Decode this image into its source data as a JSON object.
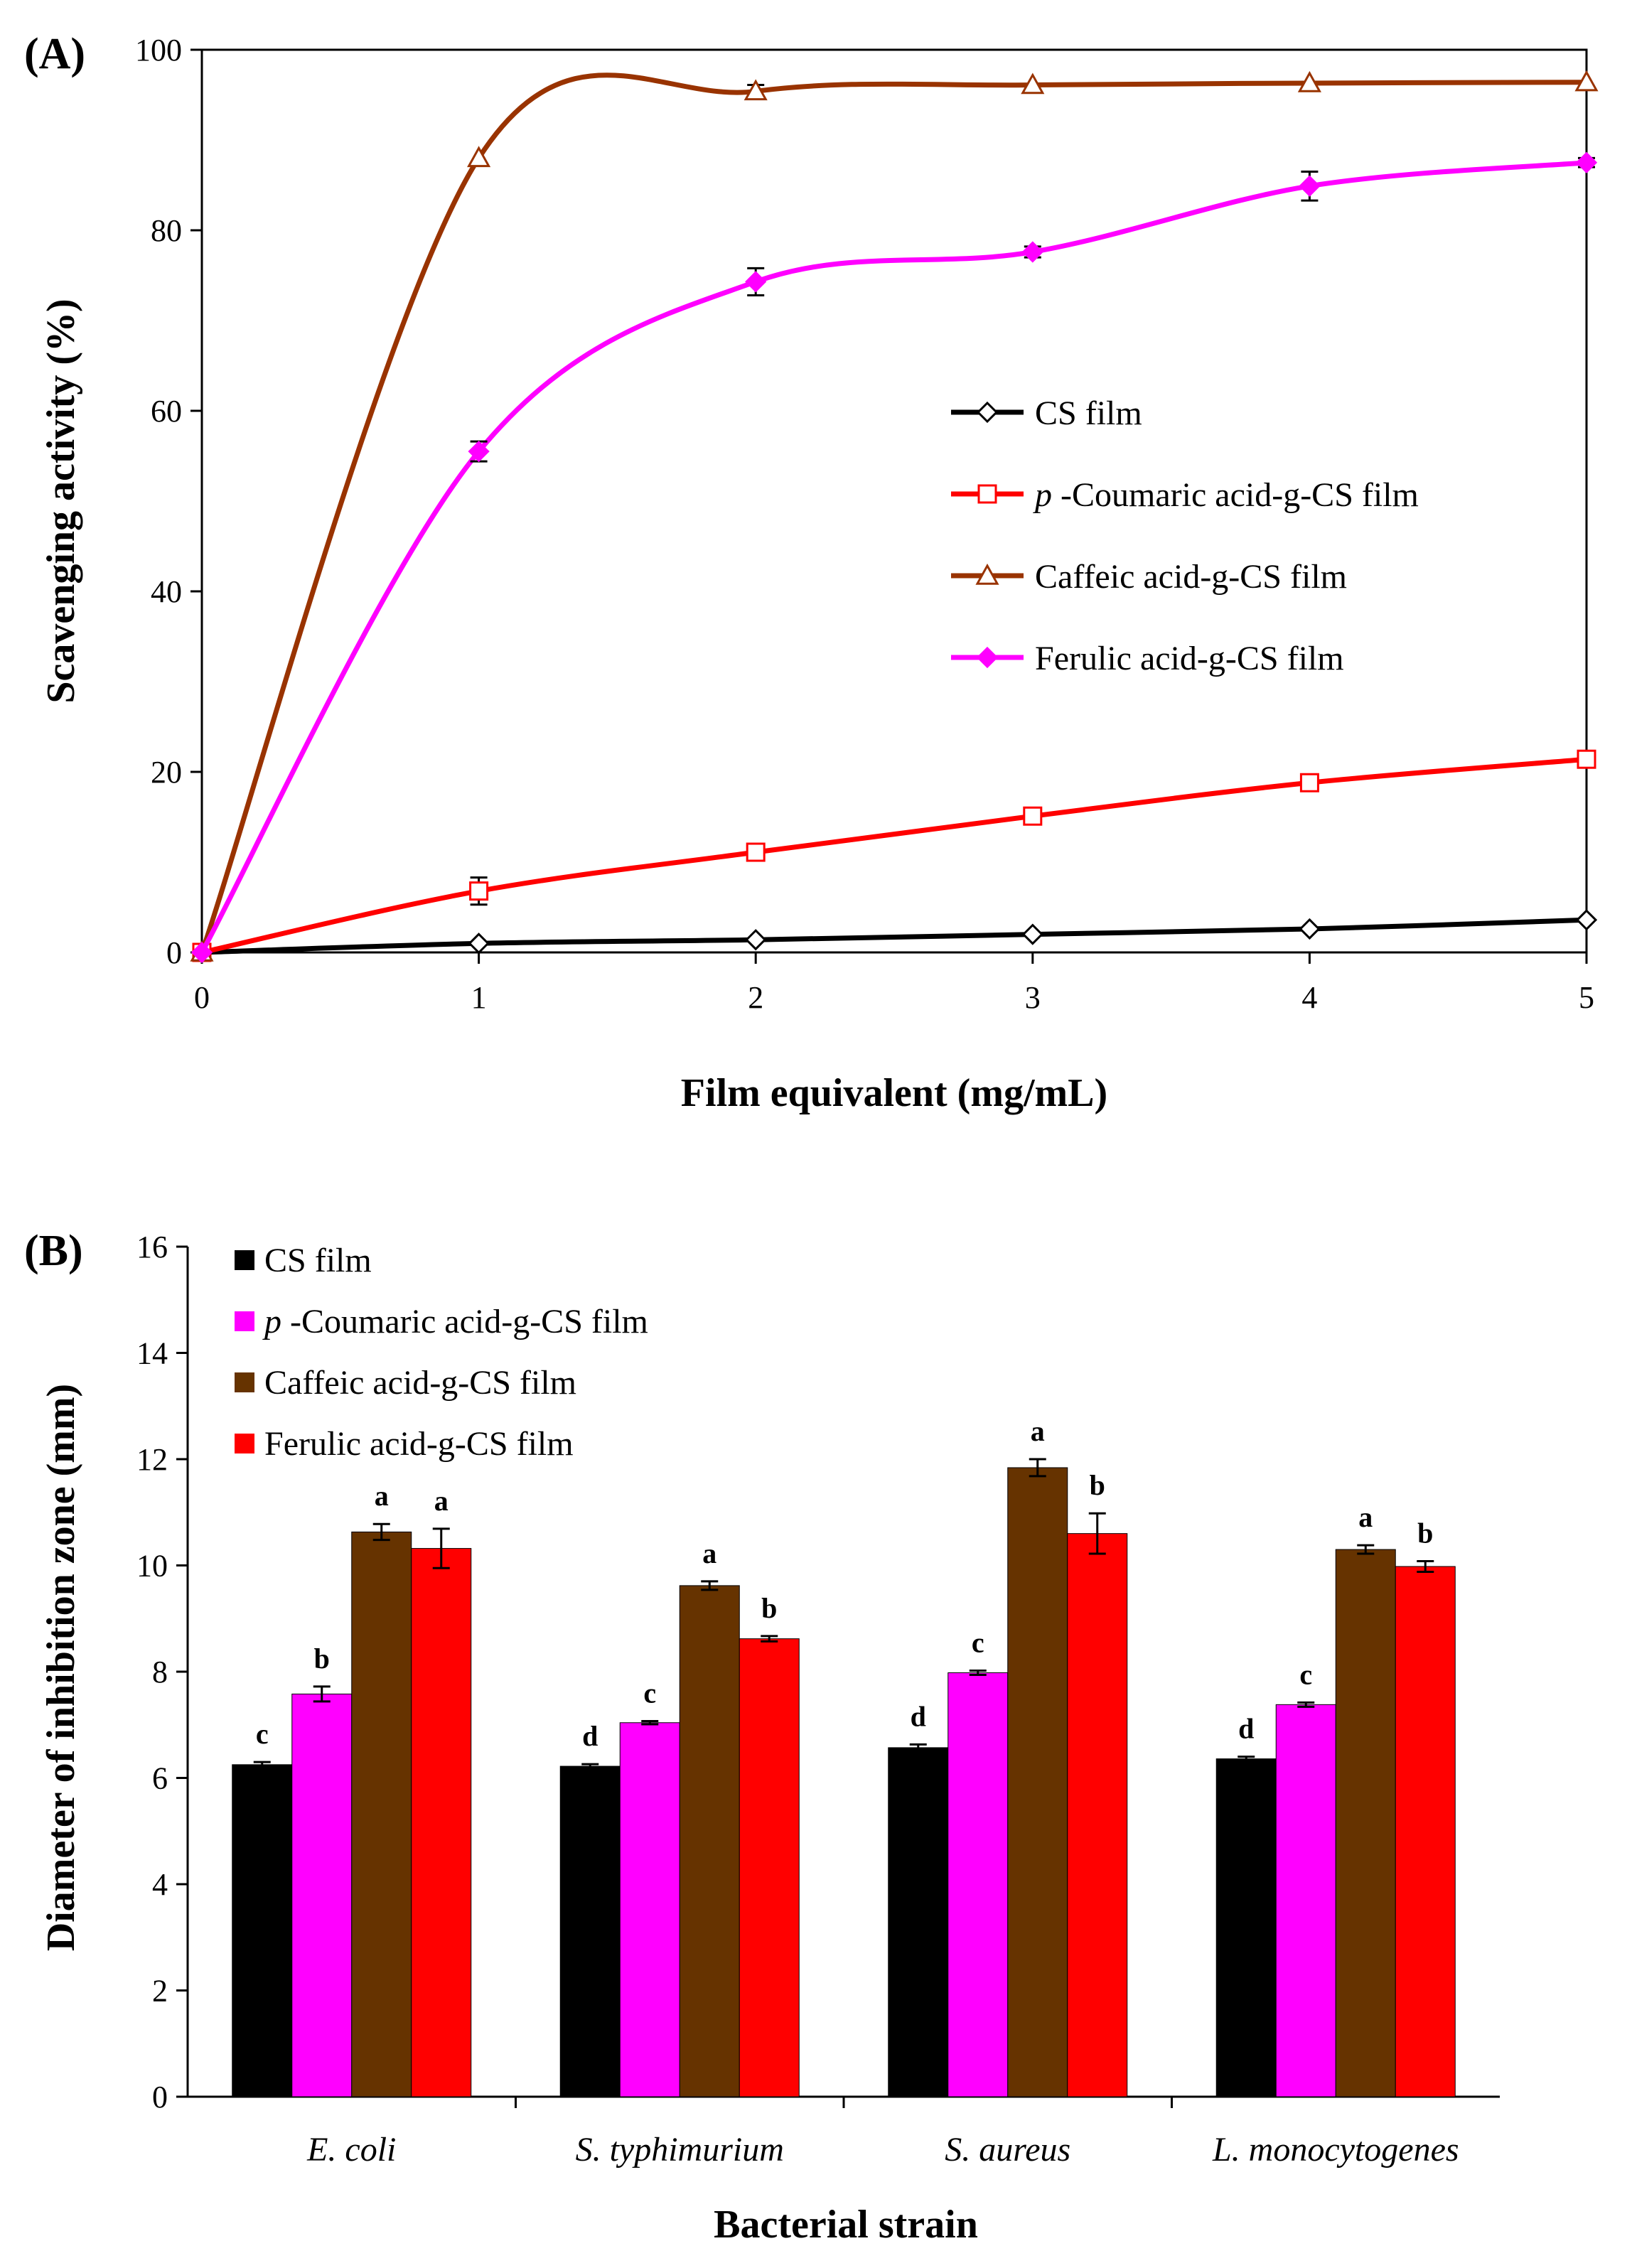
{
  "chart_data": [
    {
      "type": "line",
      "panel_label": "(A)",
      "xlabel": "Film equivalent (mg/mL)",
      "ylabel": "Scavenging activity (%)",
      "xlim": [
        0,
        5
      ],
      "ylim": [
        0,
        100
      ],
      "x_ticks": [
        "0",
        "1",
        "2",
        "3",
        "4",
        "5"
      ],
      "y_ticks": [
        "0",
        "20",
        "40",
        "60",
        "80",
        "100"
      ],
      "legend_position": "center-right",
      "x": [
        0,
        1,
        2,
        3,
        4,
        5
      ],
      "series": [
        {
          "name": "CS film",
          "name_prefix": "",
          "color": "#000000",
          "marker": "diamond-open",
          "values": [
            0,
            1.0,
            1.4,
            2.0,
            2.6,
            3.6
          ],
          "errors": [
            0,
            0,
            0,
            0,
            0,
            0
          ]
        },
        {
          "name": "-Coumaric acid-g-CS film",
          "name_prefix": "p",
          "color": "#ff0000",
          "marker": "square-open",
          "values": [
            0,
            6.8,
            11.1,
            15.1,
            18.8,
            21.4
          ],
          "errors": [
            0,
            1.5,
            0,
            0,
            0,
            0
          ]
        },
        {
          "name": "Caffeic acid-g-CS film",
          "name_prefix": "",
          "color": "#993300",
          "marker": "triangle-open",
          "values": [
            0,
            88,
            95.4,
            96.1,
            96.3,
            96.4
          ],
          "errors": [
            0,
            0,
            0.7,
            0,
            0,
            0
          ]
        },
        {
          "name": "Ferulic acid-g-CS film",
          "name_prefix": "",
          "color": "#ff00ff",
          "marker": "diamond-filled",
          "values": [
            0,
            55.5,
            74.3,
            77.6,
            84.9,
            87.5
          ],
          "errors": [
            0,
            1.1,
            1.5,
            0.6,
            1.6,
            0.5
          ]
        }
      ]
    },
    {
      "type": "bar",
      "panel_label": "(B)",
      "xlabel": "Bacterial strain",
      "ylabel": "Diameter of inhibition zone (mm)",
      "ylim": [
        0,
        16
      ],
      "y_ticks": [
        "0",
        "2",
        "4",
        "6",
        "8",
        "10",
        "12",
        "14",
        "16"
      ],
      "legend_position": "top-left",
      "categories": [
        "E. coli",
        "S. typhimurium",
        "S. aureus",
        "L. monocytogenes"
      ],
      "series": [
        {
          "name": "CS film",
          "name_prefix": "",
          "color": "#000000",
          "values": [
            6.25,
            6.22,
            6.57,
            6.36
          ],
          "errors": [
            0.05,
            0.04,
            0.06,
            0.04
          ],
          "significance": [
            "c",
            "d",
            "d",
            "d"
          ]
        },
        {
          "name": "-Coumaric acid-g-CS film",
          "name_prefix": "p",
          "color": "#ff00ff",
          "values": [
            7.58,
            7.04,
            7.98,
            7.38
          ],
          "errors": [
            0.14,
            0.03,
            0.04,
            0.04
          ],
          "significance": [
            "b",
            "c",
            "c",
            "c"
          ]
        },
        {
          "name": "Caffeic acid-g-CS film",
          "name_prefix": "",
          "color": "#663300",
          "values": [
            10.63,
            9.62,
            11.84,
            10.3
          ],
          "errors": [
            0.15,
            0.08,
            0.16,
            0.08
          ],
          "significance": [
            "a",
            "a",
            "a",
            "a"
          ]
        },
        {
          "name": "Ferulic acid-g-CS film",
          "name_prefix": "",
          "color": "#ff0000",
          "values": [
            10.32,
            8.62,
            10.6,
            9.98
          ],
          "errors": [
            0.37,
            0.05,
            0.38,
            0.1
          ],
          "significance": [
            "a",
            "b",
            "b",
            "b"
          ]
        }
      ]
    }
  ]
}
